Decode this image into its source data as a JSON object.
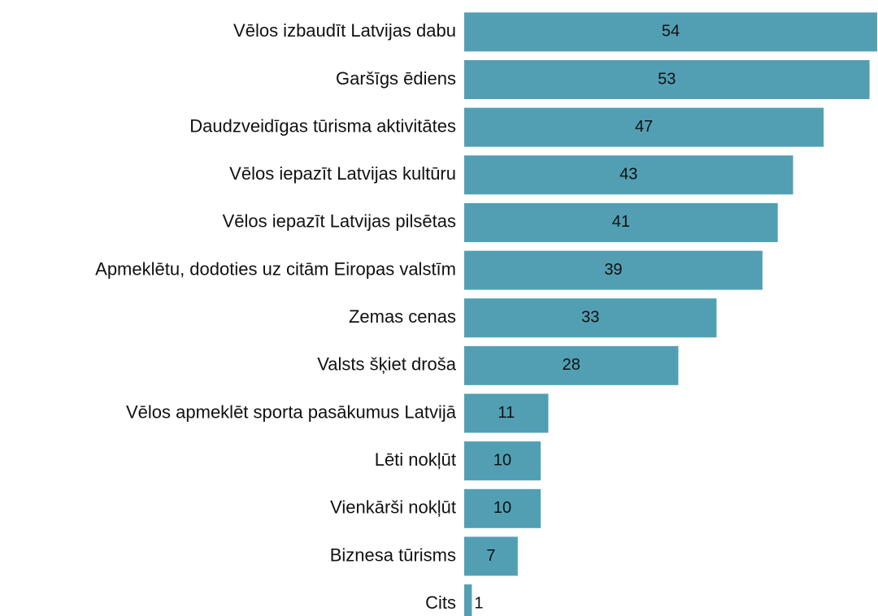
{
  "chart_data": {
    "type": "bar",
    "orientation": "horizontal",
    "categories": [
      "Vēlos izbaudīt Latvijas dabu",
      "Garšīgs ēdiens",
      "Daudzveidīgas tūrisma aktivitātes",
      "Vēlos iepazīt Latvijas kultūru",
      "Vēlos iepazīt Latvijas pilsētas",
      "Apmeklētu, dodoties uz citām Eiropas valstīm",
      "Zemas cenas",
      "Valsts šķiet droša",
      "Vēlos apmeklēt sporta pasākumus Latvijā",
      "Lēti nokļūt",
      "Vienkārši nokļūt",
      "Biznesa tūrisms",
      "Cits"
    ],
    "values": [
      54,
      53,
      47,
      43,
      41,
      39,
      33,
      28,
      11,
      10,
      10,
      7,
      1
    ],
    "color": "#529fb4"
  }
}
